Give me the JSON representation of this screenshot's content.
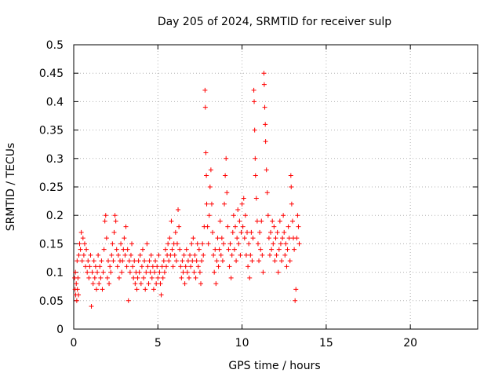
{
  "chart_data": {
    "type": "scatter",
    "title": "Day 205 of 2024, SRMTID for receiver sulp",
    "xlabel": "GPS time / hours",
    "ylabel": "SRMTID / TECUs",
    "xlim": [
      0,
      24
    ],
    "ylim": [
      0,
      0.5
    ],
    "x_ticks": [
      "0",
      "5",
      "10",
      "15",
      "20"
    ],
    "y_ticks": [
      "0",
      "0.05",
      "0.1",
      "0.15",
      "0.2",
      "0.25",
      "0.3",
      "0.35",
      "0.4",
      "0.45",
      "0.5"
    ],
    "grid": true,
    "marker": "+",
    "color": "#ff0000",
    "series": [
      {
        "points": [
          [
            0.05,
            0.09
          ],
          [
            0.08,
            0.07
          ],
          [
            0.1,
            0.1
          ],
          [
            0.12,
            0.06
          ],
          [
            0.15,
            0.08
          ],
          [
            0.18,
            0.05
          ],
          [
            0.2,
            0.12
          ],
          [
            0.22,
            0.07
          ],
          [
            0.25,
            0.09
          ],
          [
            0.28,
            0.06
          ],
          [
            0.3,
            0.13
          ],
          [
            0.35,
            0.15
          ],
          [
            0.4,
            0.14
          ],
          [
            0.45,
            0.17
          ],
          [
            0.5,
            0.12
          ],
          [
            0.55,
            0.16
          ],
          [
            0.6,
            0.13
          ],
          [
            0.65,
            0.15
          ],
          [
            0.7,
            0.11
          ],
          [
            0.75,
            0.14
          ],
          [
            0.8,
            0.1
          ],
          [
            0.85,
            0.12
          ],
          [
            0.9,
            0.09
          ],
          [
            0.95,
            0.11
          ],
          [
            1.0,
            0.13
          ],
          [
            1.05,
            0.04
          ],
          [
            1.1,
            0.1
          ],
          [
            1.15,
            0.08
          ],
          [
            1.2,
            0.12
          ],
          [
            1.25,
            0.09
          ],
          [
            1.3,
            0.11
          ],
          [
            1.35,
            0.07
          ],
          [
            1.4,
            0.1
          ],
          [
            1.45,
            0.13
          ],
          [
            1.5,
            0.08
          ],
          [
            1.55,
            0.11
          ],
          [
            1.6,
            0.09
          ],
          [
            1.65,
            0.12
          ],
          [
            1.7,
            0.07
          ],
          [
            1.75,
            0.1
          ],
          [
            1.8,
            0.14
          ],
          [
            1.85,
            0.19
          ],
          [
            1.9,
            0.2
          ],
          [
            1.95,
            0.16
          ],
          [
            2.0,
            0.09
          ],
          [
            2.05,
            0.12
          ],
          [
            2.1,
            0.08
          ],
          [
            2.15,
            0.11
          ],
          [
            2.2,
            0.1
          ],
          [
            2.25,
            0.13
          ],
          [
            2.3,
            0.15
          ],
          [
            2.35,
            0.12
          ],
          [
            2.4,
            0.17
          ],
          [
            2.45,
            0.2
          ],
          [
            2.5,
            0.19
          ],
          [
            2.55,
            0.14
          ],
          [
            2.6,
            0.11
          ],
          [
            2.65,
            0.13
          ],
          [
            2.7,
            0.09
          ],
          [
            2.75,
            0.12
          ],
          [
            2.8,
            0.15
          ],
          [
            2.85,
            0.1
          ],
          [
            2.9,
            0.12
          ],
          [
            2.95,
            0.14
          ],
          [
            3.0,
            0.16
          ],
          [
            3.05,
            0.13
          ],
          [
            3.1,
            0.18
          ],
          [
            3.15,
            0.11
          ],
          [
            3.2,
            0.14
          ],
          [
            3.25,
            0.05
          ],
          [
            3.3,
            0.12
          ],
          [
            3.35,
            0.1
          ],
          [
            3.4,
            0.13
          ],
          [
            3.45,
            0.15
          ],
          [
            3.5,
            0.11
          ],
          [
            3.55,
            0.09
          ],
          [
            3.6,
            0.12
          ],
          [
            3.65,
            0.08
          ],
          [
            3.7,
            0.1
          ],
          [
            3.75,
            0.07
          ],
          [
            3.8,
            0.09
          ],
          [
            3.85,
            0.12
          ],
          [
            3.9,
            0.1
          ],
          [
            3.95,
            0.13
          ],
          [
            4.0,
            0.08
          ],
          [
            4.05,
            0.11
          ],
          [
            4.1,
            0.14
          ],
          [
            4.15,
            0.09
          ],
          [
            4.2,
            0.12
          ],
          [
            4.25,
            0.07
          ],
          [
            4.3,
            0.1
          ],
          [
            4.35,
            0.15
          ],
          [
            4.4,
            0.11
          ],
          [
            4.45,
            0.08
          ],
          [
            4.5,
            0.12
          ],
          [
            4.55,
            0.1
          ],
          [
            4.6,
            0.13
          ],
          [
            4.65,
            0.09
          ],
          [
            4.7,
            0.11
          ],
          [
            4.75,
            0.07
          ],
          [
            4.8,
            0.1
          ],
          [
            4.85,
            0.12
          ],
          [
            4.9,
            0.08
          ],
          [
            4.95,
            0.11
          ],
          [
            5.0,
            0.09
          ],
          [
            5.05,
            0.13
          ],
          [
            5.1,
            0.1
          ],
          [
            5.15,
            0.08
          ],
          [
            5.2,
            0.06
          ],
          [
            5.25,
            0.11
          ],
          [
            5.3,
            0.09
          ],
          [
            5.35,
            0.12
          ],
          [
            5.4,
            0.1
          ],
          [
            5.45,
            0.14
          ],
          [
            5.5,
            0.11
          ],
          [
            5.55,
            0.13
          ],
          [
            5.6,
            0.15
          ],
          [
            5.65,
            0.12
          ],
          [
            5.7,
            0.16
          ],
          [
            5.75,
            0.13
          ],
          [
            5.8,
            0.19
          ],
          [
            5.85,
            0.14
          ],
          [
            5.9,
            0.11
          ],
          [
            5.95,
            0.15
          ],
          [
            6.0,
            0.13
          ],
          [
            6.05,
            0.17
          ],
          [
            6.1,
            0.12
          ],
          [
            6.15,
            0.15
          ],
          [
            6.2,
            0.21
          ],
          [
            6.25,
            0.18
          ],
          [
            6.3,
            0.14
          ],
          [
            6.35,
            0.11
          ],
          [
            6.4,
            0.09
          ],
          [
            6.45,
            0.12
          ],
          [
            6.5,
            0.1
          ],
          [
            6.55,
            0.13
          ],
          [
            6.6,
            0.08
          ],
          [
            6.65,
            0.11
          ],
          [
            6.7,
            0.14
          ],
          [
            6.75,
            0.1
          ],
          [
            6.8,
            0.12
          ],
          [
            6.85,
            0.09
          ],
          [
            6.9,
            0.13
          ],
          [
            6.95,
            0.11
          ],
          [
            7.0,
            0.15
          ],
          [
            7.05,
            0.12
          ],
          [
            7.1,
            0.16
          ],
          [
            7.15,
            0.1
          ],
          [
            7.2,
            0.13
          ],
          [
            7.25,
            0.09
          ],
          [
            7.3,
            0.12
          ],
          [
            7.35,
            0.15
          ],
          [
            7.4,
            0.11
          ],
          [
            7.45,
            0.14
          ],
          [
            7.5,
            0.1
          ],
          [
            7.55,
            0.08
          ],
          [
            7.6,
            0.12
          ],
          [
            7.65,
            0.15
          ],
          [
            7.7,
            0.13
          ],
          [
            7.75,
            0.18
          ],
          [
            7.8,
            0.42
          ],
          [
            7.82,
            0.39
          ],
          [
            7.85,
            0.31
          ],
          [
            7.88,
            0.27
          ],
          [
            7.9,
            0.22
          ],
          [
            7.95,
            0.18
          ],
          [
            8.0,
            0.15
          ],
          [
            8.05,
            0.2
          ],
          [
            8.1,
            0.25
          ],
          [
            8.15,
            0.28
          ],
          [
            8.2,
            0.22
          ],
          [
            8.25,
            0.17
          ],
          [
            8.3,
            0.13
          ],
          [
            8.35,
            0.1
          ],
          [
            8.4,
            0.14
          ],
          [
            8.45,
            0.08
          ],
          [
            8.5,
            0.12
          ],
          [
            8.55,
            0.16
          ],
          [
            8.6,
            0.11
          ],
          [
            8.65,
            0.14
          ],
          [
            8.7,
            0.19
          ],
          [
            8.75,
            0.13
          ],
          [
            8.8,
            0.16
          ],
          [
            8.85,
            0.12
          ],
          [
            8.9,
            0.15
          ],
          [
            8.95,
            0.22
          ],
          [
            9.0,
            0.27
          ],
          [
            9.05,
            0.3
          ],
          [
            9.1,
            0.24
          ],
          [
            9.15,
            0.18
          ],
          [
            9.2,
            0.14
          ],
          [
            9.25,
            0.11
          ],
          [
            9.3,
            0.15
          ],
          [
            9.35,
            0.09
          ],
          [
            9.4,
            0.13
          ],
          [
            9.45,
            0.17
          ],
          [
            9.5,
            0.2
          ],
          [
            9.55,
            0.14
          ],
          [
            9.6,
            0.18
          ],
          [
            9.65,
            0.12
          ],
          [
            9.7,
            0.16
          ],
          [
            9.75,
            0.21
          ],
          [
            9.8,
            0.15
          ],
          [
            9.85,
            0.19
          ],
          [
            9.9,
            0.13
          ],
          [
            9.95,
            0.17
          ],
          [
            10.0,
            0.22
          ],
          [
            10.05,
            0.18
          ],
          [
            10.1,
            0.23
          ],
          [
            10.15,
            0.16
          ],
          [
            10.2,
            0.2
          ],
          [
            10.25,
            0.13
          ],
          [
            10.3,
            0.17
          ],
          [
            10.35,
            0.11
          ],
          [
            10.4,
            0.15
          ],
          [
            10.45,
            0.09
          ],
          [
            10.5,
            0.13
          ],
          [
            10.55,
            0.17
          ],
          [
            10.6,
            0.12
          ],
          [
            10.65,
            0.16
          ],
          [
            10.7,
            0.42
          ],
          [
            10.72,
            0.4
          ],
          [
            10.75,
            0.35
          ],
          [
            10.78,
            0.3
          ],
          [
            10.8,
            0.27
          ],
          [
            10.85,
            0.23
          ],
          [
            10.9,
            0.19
          ],
          [
            10.95,
            0.15
          ],
          [
            11.0,
            0.12
          ],
          [
            11.05,
            0.17
          ],
          [
            11.1,
            0.14
          ],
          [
            11.15,
            0.19
          ],
          [
            11.2,
            0.13
          ],
          [
            11.25,
            0.1
          ],
          [
            11.3,
            0.45
          ],
          [
            11.32,
            0.43
          ],
          [
            11.35,
            0.39
          ],
          [
            11.38,
            0.36
          ],
          [
            11.4,
            0.33
          ],
          [
            11.45,
            0.28
          ],
          [
            11.5,
            0.24
          ],
          [
            11.55,
            0.2
          ],
          [
            11.6,
            0.16
          ],
          [
            11.65,
            0.13
          ],
          [
            11.7,
            0.17
          ],
          [
            11.75,
            0.14
          ],
          [
            11.8,
            0.19
          ],
          [
            11.85,
            0.15
          ],
          [
            11.9,
            0.18
          ],
          [
            11.95,
            0.12
          ],
          [
            12.0,
            0.16
          ],
          [
            12.05,
            0.13
          ],
          [
            12.1,
            0.17
          ],
          [
            12.15,
            0.1
          ],
          [
            12.2,
            0.14
          ],
          [
            12.25,
            0.19
          ],
          [
            12.3,
            0.15
          ],
          [
            12.35,
            0.12
          ],
          [
            12.4,
            0.16
          ],
          [
            12.45,
            0.2
          ],
          [
            12.5,
            0.17
          ],
          [
            12.55,
            0.13
          ],
          [
            12.6,
            0.15
          ],
          [
            12.65,
            0.11
          ],
          [
            12.7,
            0.14
          ],
          [
            12.75,
            0.18
          ],
          [
            12.8,
            0.16
          ],
          [
            12.85,
            0.12
          ],
          [
            12.9,
            0.27
          ],
          [
            12.92,
            0.25
          ],
          [
            12.95,
            0.22
          ],
          [
            13.0,
            0.19
          ],
          [
            13.05,
            0.16
          ],
          [
            13.1,
            0.14
          ],
          [
            13.15,
            0.05
          ],
          [
            13.2,
            0.07
          ],
          [
            13.25,
            0.16
          ],
          [
            13.3,
            0.2
          ],
          [
            13.35,
            0.18
          ],
          [
            13.4,
            0.15
          ]
        ]
      }
    ]
  }
}
